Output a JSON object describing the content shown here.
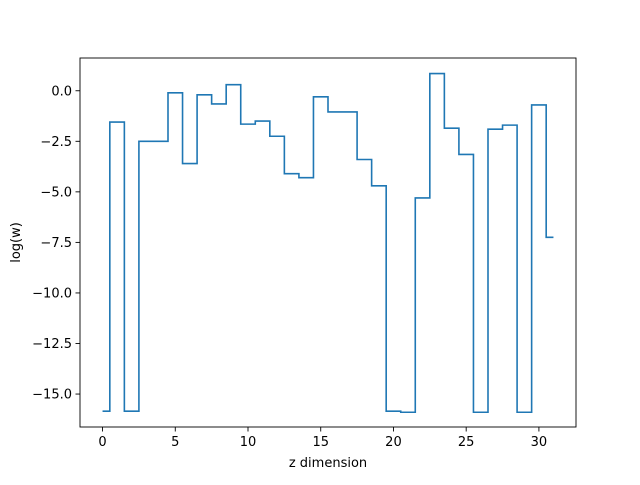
{
  "chart_data": {
    "type": "line",
    "drawstyle": "steps-mid",
    "title": "",
    "xlabel": "z dimension",
    "ylabel": "log(w)",
    "xlim": [
      -1.55,
      32.55
    ],
    "ylim": [
      -16.63,
      1.62
    ],
    "xticks": [
      0,
      5,
      10,
      15,
      20,
      25,
      30
    ],
    "yticks": [
      0.0,
      -2.5,
      -5.0,
      -7.5,
      -10.0,
      -12.5,
      -15.0
    ],
    "ytick_labels": [
      "0.0",
      "−2.5",
      "−5.0",
      "−7.5",
      "−10.0",
      "−12.5",
      "−15.0"
    ],
    "grid": false,
    "legend": "none",
    "series": [
      {
        "color": "#1f77b4",
        "x": [
          0,
          1,
          2,
          3,
          4,
          5,
          6,
          7,
          8,
          9,
          10,
          11,
          12,
          13,
          14,
          15,
          16,
          17,
          18,
          19,
          20,
          21,
          22,
          23,
          24,
          25,
          26,
          27,
          28,
          29,
          30,
          31
        ],
        "y": [
          -15.85,
          -1.55,
          -15.85,
          -2.5,
          -2.5,
          -0.1,
          -3.6,
          -0.2,
          -0.65,
          0.3,
          -1.65,
          -1.5,
          -2.25,
          -4.1,
          -4.3,
          -0.3,
          -1.05,
          -1.05,
          -3.4,
          -4.7,
          -15.85,
          -15.9,
          -5.3,
          0.85,
          -1.85,
          -3.15,
          -15.9,
          -1.9,
          -1.7,
          -15.9,
          -0.7,
          -7.25
        ]
      }
    ]
  }
}
